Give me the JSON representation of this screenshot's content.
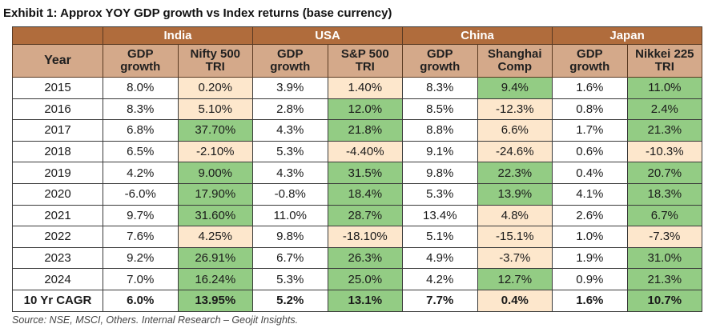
{
  "title": "Exhibit 1: Approx YOY GDP growth vs Index returns (base currency)",
  "colors": {
    "header_top": "#b06c3c",
    "header_sub": "#d4a98a",
    "positive_cell": "#93cc84",
    "low_or_negative_cell": "#fde7cc"
  },
  "table": {
    "year_header": "Year",
    "countries": [
      "India",
      "USA",
      "China",
      "Japan"
    ],
    "sub_headers": [
      [
        "GDP",
        "growth"
      ],
      [
        "Nifty 500",
        "TRI"
      ],
      [
        "GDP",
        "growth"
      ],
      [
        "S&P 500",
        "TRI"
      ],
      [
        "GDP",
        "growth"
      ],
      [
        "Shanghai",
        "Comp"
      ],
      [
        "GDP",
        "growth"
      ],
      [
        "Nikkei 225",
        "TRI"
      ]
    ],
    "rows": [
      {
        "year": "2015",
        "cells": [
          "8.0%",
          "0.20%",
          "3.9%",
          "1.40%",
          "8.3%",
          "9.4%",
          "1.6%",
          "11.0%"
        ],
        "shade": [
          "plain",
          "neg",
          "plain",
          "neg",
          "plain",
          "pos",
          "plain",
          "pos"
        ]
      },
      {
        "year": "2016",
        "cells": [
          "8.3%",
          "5.10%",
          "2.8%",
          "12.0%",
          "8.5%",
          "-12.3%",
          "0.8%",
          "2.4%"
        ],
        "shade": [
          "plain",
          "neg",
          "plain",
          "pos",
          "plain",
          "neg",
          "plain",
          "pos"
        ]
      },
      {
        "year": "2017",
        "cells": [
          "6.8%",
          "37.70%",
          "4.3%",
          "21.8%",
          "8.8%",
          "6.6%",
          "1.7%",
          "21.3%"
        ],
        "shade": [
          "plain",
          "pos",
          "plain",
          "pos",
          "plain",
          "neg",
          "plain",
          "pos"
        ]
      },
      {
        "year": "2018",
        "cells": [
          "6.5%",
          "-2.10%",
          "5.3%",
          "-4.40%",
          "9.1%",
          "-24.6%",
          "0.6%",
          "-10.3%"
        ],
        "shade": [
          "plain",
          "neg",
          "plain",
          "neg",
          "plain",
          "neg",
          "plain",
          "neg"
        ]
      },
      {
        "year": "2019",
        "cells": [
          "4.2%",
          "9.00%",
          "4.3%",
          "31.5%",
          "9.8%",
          "22.3%",
          "0.4%",
          "20.7%"
        ],
        "shade": [
          "plain",
          "pos",
          "plain",
          "pos",
          "plain",
          "pos",
          "plain",
          "pos"
        ]
      },
      {
        "year": "2020",
        "cells": [
          "-6.0%",
          "17.90%",
          "-0.8%",
          "18.4%",
          "5.3%",
          "13.9%",
          "4.1%",
          "18.3%"
        ],
        "shade": [
          "plain",
          "pos",
          "plain",
          "pos",
          "plain",
          "pos",
          "plain",
          "pos"
        ]
      },
      {
        "year": "2021",
        "cells": [
          "9.7%",
          "31.60%",
          "11.0%",
          "28.7%",
          "13.4%",
          "4.8%",
          "2.6%",
          "6.7%"
        ],
        "shade": [
          "plain",
          "pos",
          "plain",
          "pos",
          "plain",
          "neg",
          "plain",
          "pos"
        ]
      },
      {
        "year": "2022",
        "cells": [
          "7.6%",
          "4.25%",
          "9.8%",
          "-18.10%",
          "5.1%",
          "-15.1%",
          "1.0%",
          "-7.3%"
        ],
        "shade": [
          "plain",
          "neg",
          "plain",
          "neg",
          "plain",
          "neg",
          "plain",
          "neg"
        ]
      },
      {
        "year": "2023",
        "cells": [
          "9.2%",
          "26.91%",
          "6.7%",
          "26.3%",
          "4.9%",
          "-3.7%",
          "1.9%",
          "31.0%"
        ],
        "shade": [
          "plain",
          "pos",
          "plain",
          "pos",
          "plain",
          "neg",
          "plain",
          "pos"
        ]
      },
      {
        "year": "2024",
        "cells": [
          "7.0%",
          "16.24%",
          "5.3%",
          "25.0%",
          "4.2%",
          "12.7%",
          "0.9%",
          "21.3%"
        ],
        "shade": [
          "plain",
          "pos",
          "plain",
          "pos",
          "plain",
          "pos",
          "plain",
          "pos"
        ]
      }
    ],
    "cagr": {
      "label": "10 Yr CAGR",
      "cells": [
        "6.0%",
        "13.95%",
        "5.2%",
        "13.1%",
        "7.7%",
        "0.4%",
        "1.6%",
        "10.7%"
      ],
      "shade": [
        "plain",
        "pos",
        "plain",
        "pos",
        "plain",
        "neg",
        "plain",
        "pos"
      ]
    }
  },
  "source": "Source: NSE, MSCI, Others. Internal Research – Geojit Insights."
}
